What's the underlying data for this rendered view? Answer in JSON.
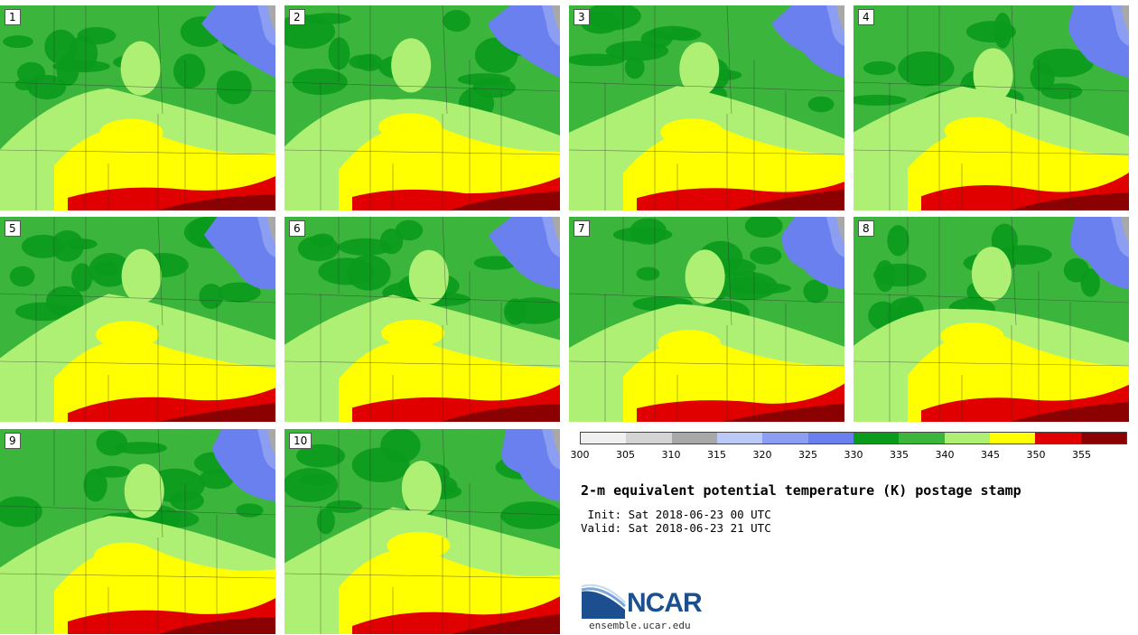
{
  "panels": [
    {
      "label": "1"
    },
    {
      "label": "2"
    },
    {
      "label": "3"
    },
    {
      "label": "4"
    },
    {
      "label": "5"
    },
    {
      "label": "6"
    },
    {
      "label": "7"
    },
    {
      "label": "8"
    },
    {
      "label": "9"
    },
    {
      "label": "10"
    }
  ],
  "colorbar": {
    "colors": [
      "#f0f0f0",
      "#d4d4d4",
      "#a8a8a8",
      "#bcc8f6",
      "#8c9ef2",
      "#6a80ee",
      "#0a9a1c",
      "#3cb53c",
      "#aef074",
      "#ffff00",
      "#e00000",
      "#8b0000"
    ],
    "ticks": [
      "300",
      "305",
      "310",
      "315",
      "320",
      "325",
      "330",
      "335",
      "340",
      "345",
      "350",
      "355"
    ]
  },
  "title": "2-m equivalent potential temperature (K) postage stamp",
  "init": " Init: Sat 2018-06-23 00 UTC",
  "valid": "Valid: Sat 2018-06-23 21 UTC",
  "logo": {
    "text": "NCAR",
    "url": "ensemble.ucar.edu"
  }
}
